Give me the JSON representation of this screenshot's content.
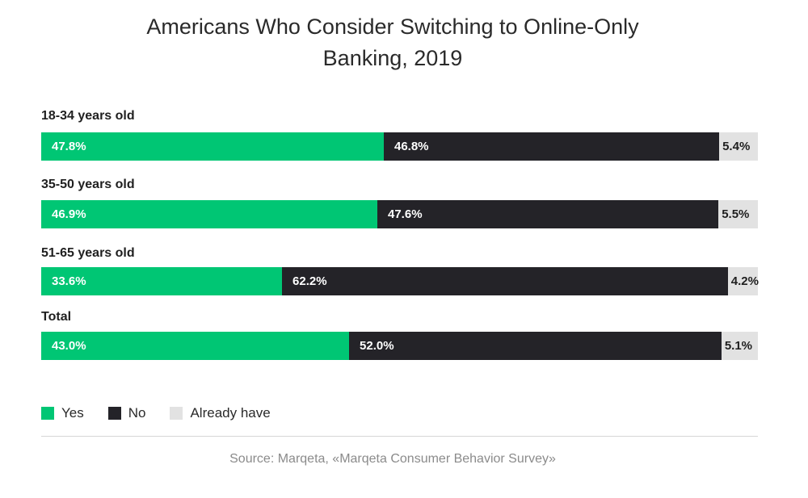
{
  "chart_data": {
    "type": "bar",
    "orientation": "horizontal",
    "stacked": true,
    "title": "Americans Who Consider Switching to Online-Only Banking, 2019",
    "title_lines": [
      "Americans Who Consider Switching to Online-Only",
      "Banking, 2019"
    ],
    "categories": [
      "18-34 years old",
      "35-50 years old",
      "51-65 years old",
      "Total"
    ],
    "series": [
      {
        "name": "Yes",
        "color": "#00c674",
        "values": [
          47.8,
          46.9,
          33.6,
          43.0
        ],
        "labels": [
          "47.8%",
          "46.9%",
          "33.6%",
          "43.0%"
        ]
      },
      {
        "name": "No",
        "color": "#242328",
        "values": [
          46.8,
          47.6,
          62.2,
          52.0
        ],
        "labels": [
          "46.8%",
          "47.6%",
          "62.2%",
          "52.0%"
        ]
      },
      {
        "name": "Already have",
        "color": "#e2e2e2",
        "values": [
          5.4,
          5.5,
          4.2,
          5.1
        ],
        "labels": [
          "5.4%",
          "5.5%",
          "4.2%",
          "5.1%"
        ]
      }
    ],
    "xlim": [
      0,
      100
    ],
    "legend_position": "bottom-left",
    "grid": false
  },
  "source": "Source: Marqeta, «Marqeta Consumer Behavior Survey»"
}
